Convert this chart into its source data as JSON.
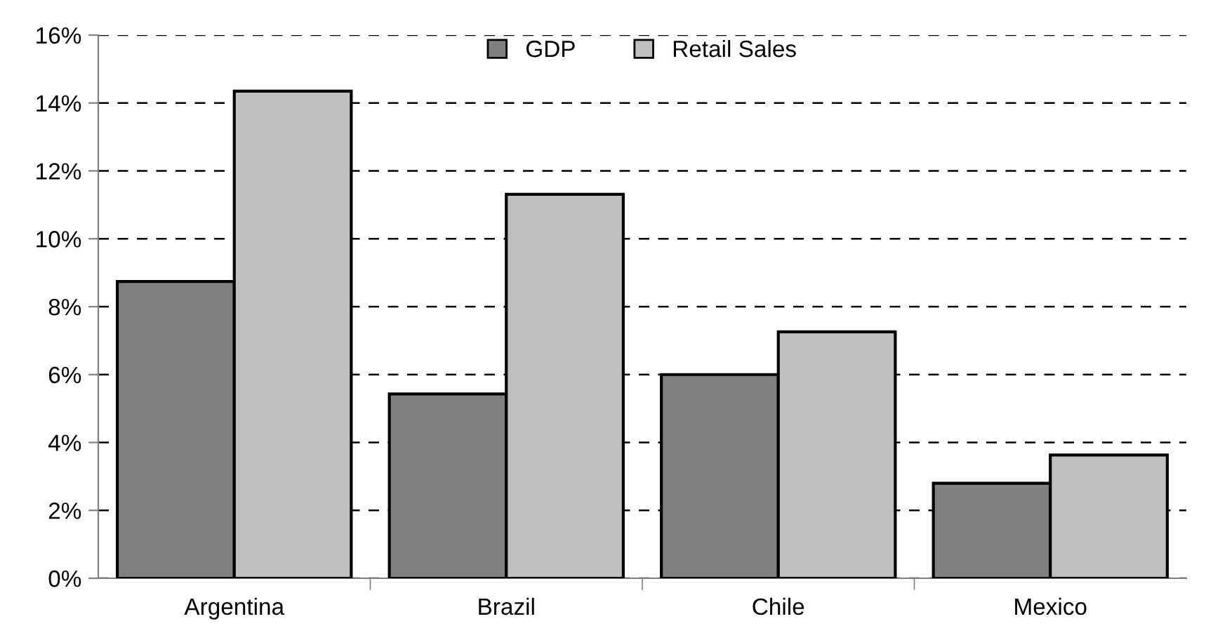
{
  "chart_data": {
    "type": "bar",
    "categories": [
      "Argentina",
      "Brazil",
      "Chile",
      "Mexico"
    ],
    "series": [
      {
        "name": "GDP",
        "color": "#808080",
        "values": [
          8.74,
          5.43,
          6.0,
          2.8
        ]
      },
      {
        "name": "Retail Sales",
        "color": "#c0c0c0",
        "values": [
          14.35,
          11.31,
          7.26,
          3.63
        ]
      }
    ],
    "ylim": [
      0,
      16
    ],
    "yticks": [
      {
        "value": 0,
        "label": "0%"
      },
      {
        "value": 2,
        "label": "2%"
      },
      {
        "value": 4,
        "label": "4%"
      },
      {
        "value": 6,
        "label": "6%"
      },
      {
        "value": 8,
        "label": "8%"
      },
      {
        "value": 10,
        "label": "10%"
      },
      {
        "value": 12,
        "label": "12%"
      },
      {
        "value": 14,
        "label": "14%"
      },
      {
        "value": 16,
        "label": "16%"
      }
    ],
    "grid": "y",
    "legend": "top"
  }
}
